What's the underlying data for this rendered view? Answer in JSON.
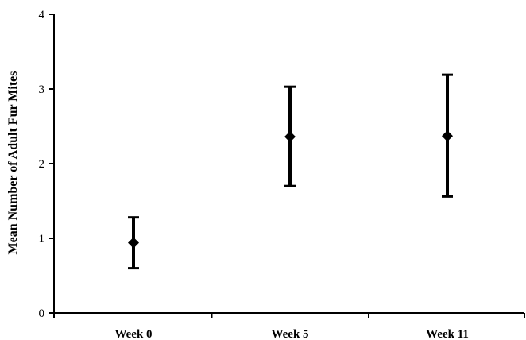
{
  "chart_data": {
    "type": "scatter",
    "title": "",
    "xlabel": "",
    "ylabel": "Mean Number of Adult Fur Mites",
    "categories": [
      "Week 0",
      "Week 5",
      "Week 11"
    ],
    "series": [
      {
        "values": [
          0.94,
          2.36,
          2.37
        ],
        "error_low": [
          0.6,
          1.7,
          1.56
        ],
        "error_high": [
          1.28,
          3.03,
          3.19
        ],
        "marker": "diamond",
        "color": "#000000"
      }
    ],
    "ylim": [
      0,
      4
    ],
    "yticks": [
      "0",
      "1",
      "2",
      "3",
      "4"
    ],
    "grid": false,
    "legend": "none"
  }
}
